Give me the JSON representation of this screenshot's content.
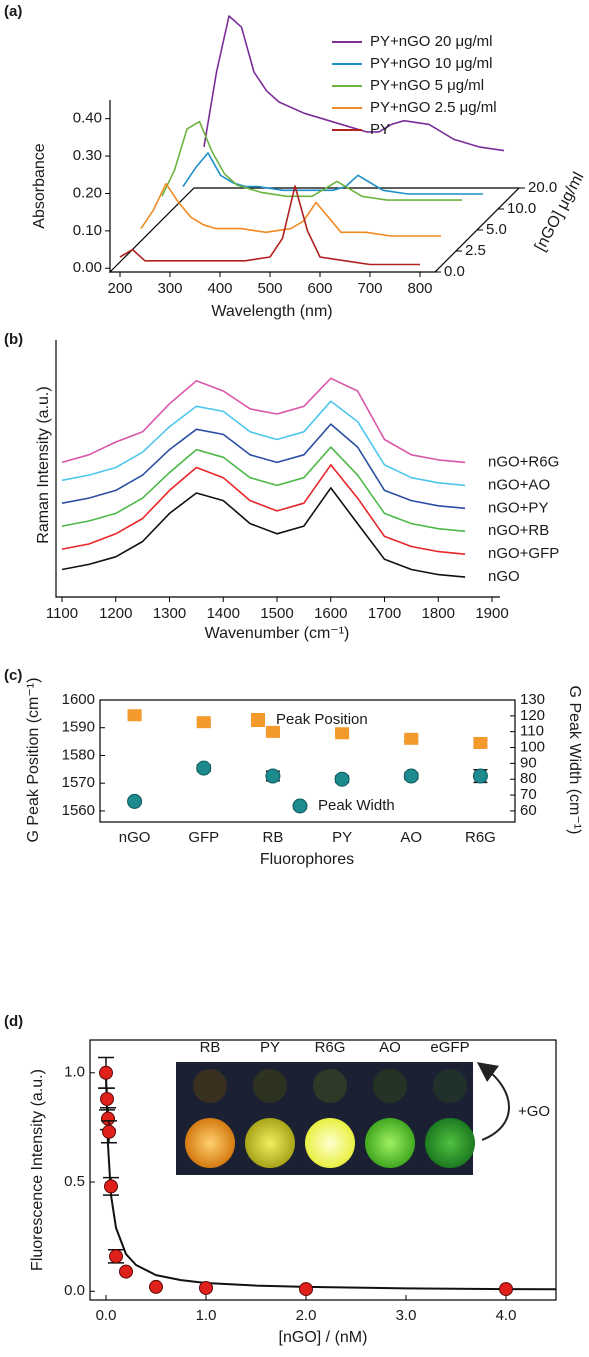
{
  "chart_data": [
    {
      "type": "waterfall",
      "panel_label": "(a)",
      "xlabel": "Wavelength (nm)",
      "ylabel": "Absorbance",
      "zlabel": "[nGO] μg/ml",
      "x": [
        200,
        225,
        250,
        275,
        300,
        325,
        350,
        400,
        450,
        500,
        525,
        550,
        575,
        600,
        650,
        700,
        750,
        800
      ],
      "xlim": [
        180,
        830
      ],
      "xticks": [
        200,
        300,
        400,
        500,
        600,
        700,
        800
      ],
      "ylim": [
        -0.01,
        0.45
      ],
      "yticks": [
        {
          "value": 0,
          "label": "0.00"
        },
        {
          "value": 0.1,
          "label": "0.10"
        },
        {
          "value": 0.2,
          "label": "0.20"
        },
        {
          "value": 0.3,
          "label": "0.30"
        },
        {
          "value": 0.4,
          "label": "0.40"
        }
      ],
      "zticks": [
        {
          "value": 0,
          "label": "0.0"
        },
        {
          "value": 2.5,
          "label": "2.5"
        },
        {
          "value": 5,
          "label": "5.0"
        },
        {
          "value": 10,
          "label": "10.0"
        },
        {
          "value": 20,
          "label": "20.0"
        }
      ],
      "series": [
        {
          "name": "PY+nGO 20 μg/ml",
          "color": "#7b2d9a",
          "values": [
            0.1,
            0.3,
            0.45,
            0.42,
            0.3,
            0.25,
            0.22,
            0.19,
            0.17,
            0.15,
            0.14,
            0.14,
            0.16,
            0.17,
            0.16,
            0.12,
            0.1,
            0.09
          ]
        },
        {
          "name": "PY+nGO 10 μg/ml",
          "color": "#1f8fc8",
          "values": [
            0.05,
            0.1,
            0.14,
            0.08,
            0.06,
            0.05,
            0.05,
            0.04,
            0.04,
            0.04,
            0.05,
            0.08,
            0.06,
            0.04,
            0.03,
            0.03,
            0.03,
            0.03
          ]
        },
        {
          "name": "PY+nGO 5 μg/ml",
          "color": "#6cb33f",
          "values": [
            0.08,
            0.15,
            0.26,
            0.28,
            0.2,
            0.14,
            0.11,
            0.09,
            0.08,
            0.08,
            0.1,
            0.12,
            0.1,
            0.08,
            0.07,
            0.07,
            0.07,
            0.07
          ]
        },
        {
          "name": "PY+nGO 2.5 μg/ml",
          "color": "#f08a24",
          "values": [
            0.05,
            0.1,
            0.17,
            0.12,
            0.08,
            0.06,
            0.05,
            0.05,
            0.04,
            0.05,
            0.07,
            0.12,
            0.08,
            0.04,
            0.04,
            0.03,
            0.03,
            0.03
          ]
        },
        {
          "name": "PY",
          "color": "#b0201e",
          "values": [
            0.03,
            0.05,
            0.02,
            0.02,
            0.02,
            0.02,
            0.02,
            0.02,
            0.02,
            0.03,
            0.08,
            0.22,
            0.1,
            0.03,
            0.02,
            0.01,
            0.01,
            0.01
          ]
        }
      ]
    },
    {
      "type": "line",
      "panel_label": "(b)",
      "xlabel": "Wavenumber (cm⁻¹)",
      "ylabel": "Raman Intensity (a.u.)",
      "x": [
        1100,
        1150,
        1200,
        1250,
        1300,
        1350,
        1400,
        1450,
        1500,
        1550,
        1600,
        1650,
        1700,
        1750,
        1800,
        1850
      ],
      "xlim": [
        1100,
        1900
      ],
      "xticks": [
        1100,
        1200,
        1300,
        1400,
        1500,
        1600,
        1700,
        1800,
        1900
      ],
      "ylim": [
        0,
        1
      ],
      "series": [
        {
          "name": "nGO+R6G",
          "color": "#d957a8",
          "values": [
            0.52,
            0.55,
            0.6,
            0.64,
            0.75,
            0.84,
            0.8,
            0.73,
            0.71,
            0.74,
            0.85,
            0.8,
            0.61,
            0.55,
            0.53,
            0.52
          ]
        },
        {
          "name": "nGO+AO",
          "color": "#4fc6ee",
          "values": [
            0.45,
            0.47,
            0.5,
            0.56,
            0.66,
            0.74,
            0.72,
            0.64,
            0.61,
            0.64,
            0.76,
            0.68,
            0.51,
            0.46,
            0.44,
            0.43
          ]
        },
        {
          "name": "nGO+PY",
          "color": "#2a4fa3",
          "values": [
            0.36,
            0.38,
            0.41,
            0.47,
            0.57,
            0.65,
            0.63,
            0.55,
            0.52,
            0.55,
            0.67,
            0.58,
            0.41,
            0.37,
            0.35,
            0.34
          ]
        },
        {
          "name": "nGO+RB",
          "color": "#4cb848",
          "values": [
            0.27,
            0.29,
            0.32,
            0.38,
            0.48,
            0.57,
            0.54,
            0.46,
            0.43,
            0.46,
            0.58,
            0.47,
            0.32,
            0.28,
            0.26,
            0.25
          ]
        },
        {
          "name": "nGO+GFP",
          "color": "#e8262a",
          "values": [
            0.18,
            0.2,
            0.24,
            0.3,
            0.41,
            0.5,
            0.46,
            0.37,
            0.33,
            0.36,
            0.51,
            0.38,
            0.23,
            0.19,
            0.17,
            0.16
          ]
        },
        {
          "name": "nGO",
          "color": "#111111",
          "values": [
            0.1,
            0.12,
            0.15,
            0.21,
            0.32,
            0.4,
            0.37,
            0.28,
            0.24,
            0.27,
            0.42,
            0.28,
            0.14,
            0.1,
            0.08,
            0.07
          ]
        }
      ]
    },
    {
      "type": "errorbar",
      "panel_label": "(c)",
      "xlabel": "Fluorophores",
      "ylabel": "G Peak Position (cm⁻¹)",
      "y2label": "G Peak Width (cm⁻¹)",
      "categories": [
        "nGO",
        "GFP",
        "RB",
        "PY",
        "AO",
        "R6G"
      ],
      "ylim": [
        1556,
        1600
      ],
      "yticks": [
        1560,
        1570,
        1580,
        1590,
        1600
      ],
      "y2lim": [
        53,
        130
      ],
      "y2ticks": [
        60,
        70,
        80,
        90,
        100,
        110,
        120,
        130
      ],
      "series": [
        {
          "name": "Peak Position",
          "color": "#f39a2b",
          "marker": "square",
          "values": [
            1594.5,
            1592,
            1588.5,
            1588,
            1586,
            1584.5
          ],
          "errors": [
            0.6,
            0.7,
            0.8,
            0.8,
            0.8,
            1.0
          ]
        },
        {
          "name": "Peak Width",
          "color": "#1d8a8e",
          "marker": "circle",
          "axis": "y2",
          "values": [
            66,
            87,
            82,
            80,
            82,
            82
          ],
          "errors": [
            1.5,
            2,
            3,
            2,
            2,
            4
          ]
        }
      ]
    },
    {
      "type": "scatter",
      "panel_label": "(d)",
      "xlabel": "[nGO] / (nM)",
      "ylabel": "Fluorescence Intensity (a.u.)",
      "xlim": [
        -0.16,
        4.5
      ],
      "xticks": [
        {
          "value": 0,
          "label": "0.0"
        },
        {
          "value": 1,
          "label": "1.0"
        },
        {
          "value": 2,
          "label": "2.0"
        },
        {
          "value": 3,
          "label": "3.0"
        },
        {
          "value": 4,
          "label": "4.0"
        }
      ],
      "ylim": [
        -0.04,
        1.15
      ],
      "yticks": [
        {
          "value": 0,
          "label": "0.0"
        },
        {
          "value": 0.5,
          "label": "0.5"
        },
        {
          "value": 1,
          "label": "1.0"
        }
      ],
      "series": [
        {
          "color": "#e0201b",
          "marker": "circle",
          "x": [
            0,
            0.01,
            0.02,
            0.03,
            0.05,
            0.1,
            0.2,
            0.5,
            1,
            2,
            4
          ],
          "values": [
            1.0,
            0.88,
            0.79,
            0.73,
            0.48,
            0.16,
            0.09,
            0.02,
            0.015,
            0.01,
            0.01
          ],
          "errors": [
            0.07,
            0.05,
            0.05,
            0.05,
            0.04,
            0.03,
            null,
            null,
            null,
            null,
            null
          ]
        },
        {
          "color": "#111111",
          "marker": "line",
          "x": [
            0,
            0.02,
            0.05,
            0.1,
            0.2,
            0.3,
            0.5,
            0.75,
            1,
            1.5,
            2,
            3,
            4,
            4.5
          ],
          "values": [
            1.0,
            0.67,
            0.44,
            0.29,
            0.17,
            0.12,
            0.074,
            0.051,
            0.038,
            0.026,
            0.02,
            0.013,
            0.01,
            0.009
          ]
        }
      ],
      "inset_labels": [
        "RB",
        "PY",
        "R6G",
        "AO",
        "eGFP"
      ],
      "inset_annotation": "+GO"
    }
  ]
}
